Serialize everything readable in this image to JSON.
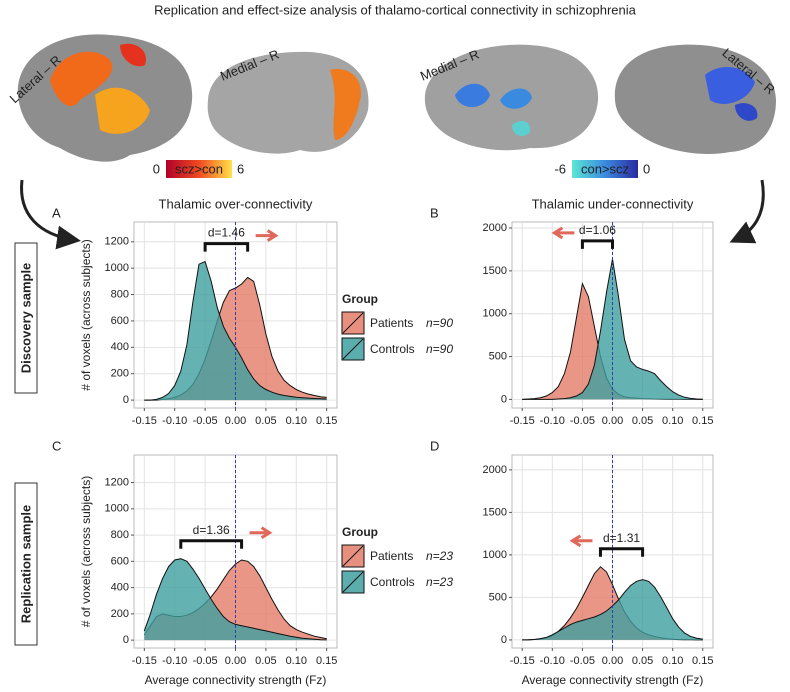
{
  "title": "Replication and effect-size analysis of thalamo-cortical connectivity in schizophrenia",
  "brain_labels": [
    "Lateral – R",
    "Medial – R",
    "Medial – R",
    "Lateral – R"
  ],
  "colorbars": [
    {
      "min": 0,
      "label": "scz>con",
      "max": 6
    },
    {
      "min": -6,
      "label": "con>scz",
      "max": 0
    }
  ],
  "row_labels": [
    "Discovery sample",
    "Replication sample"
  ],
  "chart_data": [
    {
      "type": "density",
      "panel": "A",
      "title": "Thalamic over-connectivity",
      "ylabel": "# of voxels (across subjects)",
      "x": [
        -0.15,
        -0.14,
        -0.13,
        -0.12,
        -0.11,
        -0.1,
        -0.09,
        -0.08,
        -0.07,
        -0.06,
        -0.05,
        -0.04,
        -0.03,
        -0.02,
        -0.01,
        0,
        0.01,
        0.02,
        0.03,
        0.04,
        0.05,
        0.06,
        0.07,
        0.08,
        0.09,
        0.1,
        0.11,
        0.12,
        0.13,
        0.14,
        0.15
      ],
      "series": [
        {
          "name": "Patients",
          "n_label": "n=90",
          "color": "#e47c68",
          "values": [
            0,
            0,
            0,
            5,
            10,
            20,
            40,
            70,
            120,
            200,
            310,
            450,
            600,
            740,
            830,
            850,
            880,
            930,
            900,
            720,
            500,
            330,
            220,
            150,
            110,
            80,
            60,
            45,
            35,
            25,
            20
          ]
        },
        {
          "name": "Controls",
          "n_label": "n=90",
          "color": "#3f9f9f",
          "values": [
            0,
            0,
            5,
            20,
            50,
            110,
            220,
            420,
            750,
            1030,
            1050,
            900,
            700,
            560,
            470,
            400,
            320,
            230,
            160,
            110,
            80,
            60,
            45,
            35,
            28,
            22,
            18,
            15,
            12,
            10,
            8
          ]
        }
      ],
      "legend_title": "Group",
      "effect_label": "d=1.46",
      "arrow": "right",
      "vline": 0,
      "xlim": [
        -0.167,
        0.167
      ],
      "ylim": [
        -60,
        1350
      ],
      "xticks": [
        -0.15,
        {
          "value": -0.1,
          "label": "-0.10"
        },
        -0.05,
        {
          "value": 0,
          "label": "0.00"
        },
        0.05,
        {
          "value": 0.1,
          "label": "0.10"
        },
        0.15
      ],
      "yticks": [
        0,
        200,
        400,
        600,
        800,
        1000,
        1200
      ],
      "grid": true
    },
    {
      "type": "density",
      "panel": "B",
      "title": "Thalamic under-connectivity",
      "x": [
        -0.15,
        -0.14,
        -0.13,
        -0.12,
        -0.11,
        -0.1,
        -0.09,
        -0.08,
        -0.07,
        -0.06,
        -0.05,
        -0.04,
        -0.03,
        -0.02,
        -0.01,
        0,
        0.01,
        0.02,
        0.03,
        0.04,
        0.05,
        0.06,
        0.07,
        0.08,
        0.09,
        0.1,
        0.11,
        0.12,
        0.13,
        0.14,
        0.15
      ],
      "series": [
        {
          "color": "#e47c68",
          "values": [
            0,
            5,
            10,
            20,
            40,
            80,
            150,
            300,
            550,
            950,
            1350,
            1200,
            850,
            500,
            250,
            120,
            60,
            30,
            20,
            15,
            10,
            8,
            5,
            4,
            3,
            2,
            1,
            0,
            0,
            0,
            0
          ]
        },
        {
          "color": "#3f9f9f",
          "values": [
            0,
            0,
            0,
            0,
            0,
            0,
            5,
            10,
            20,
            40,
            80,
            180,
            400,
            800,
            1250,
            1640,
            1200,
            700,
            450,
            380,
            350,
            330,
            300,
            220,
            150,
            90,
            50,
            25,
            12,
            5,
            2
          ]
        }
      ],
      "effect_label": "d=1.06",
      "arrow": "left",
      "vline": 0,
      "xlim": [
        -0.167,
        0.167
      ],
      "ylim": [
        -100,
        2070
      ],
      "xticks": [
        -0.15,
        {
          "value": -0.1,
          "label": "-0.10"
        },
        -0.05,
        {
          "value": 0,
          "label": "0.00"
        },
        0.05,
        {
          "value": 0.1,
          "label": "0.10"
        },
        0.15
      ],
      "yticks": [
        0,
        500,
        1000,
        1500,
        2000
      ],
      "grid": true
    },
    {
      "type": "density",
      "panel": "C",
      "ylabel": "# of voxels (across subjects)",
      "xlabel": "Average connectivity strength (Fz)",
      "x": [
        -0.15,
        -0.14,
        -0.13,
        -0.12,
        -0.11,
        -0.1,
        -0.09,
        -0.08,
        -0.07,
        -0.06,
        -0.05,
        -0.04,
        -0.03,
        -0.02,
        -0.01,
        0,
        0.01,
        0.02,
        0.03,
        0.04,
        0.05,
        0.06,
        0.07,
        0.08,
        0.09,
        0.1,
        0.11,
        0.12,
        0.13,
        0.14,
        0.15
      ],
      "series": [
        {
          "name": "Patients",
          "n_label": "n=23",
          "color": "#e47c68",
          "values": [
            40,
            110,
            180,
            200,
            190,
            180,
            180,
            190,
            210,
            240,
            280,
            330,
            390,
            460,
            530,
            580,
            610,
            600,
            560,
            490,
            400,
            310,
            230,
            160,
            110,
            80,
            60,
            45,
            30,
            20,
            10
          ]
        },
        {
          "name": "Controls",
          "n_label": "n=23",
          "color": "#3f9f9f",
          "values": [
            70,
            200,
            350,
            470,
            560,
            610,
            620,
            600,
            540,
            470,
            390,
            310,
            240,
            180,
            140,
            120,
            110,
            100,
            90,
            80,
            70,
            60,
            50,
            40,
            30,
            22,
            15,
            10,
            6,
            3,
            2
          ]
        }
      ],
      "legend_title": "Group",
      "effect_label": "d=1.36",
      "arrow": "right",
      "vline": 0,
      "xlim": [
        -0.167,
        0.167
      ],
      "ylim": [
        -60,
        1410
      ],
      "xticks": [
        -0.15,
        {
          "value": -0.1,
          "label": "-0.10"
        },
        -0.05,
        {
          "value": 0,
          "label": "0.00"
        },
        0.05,
        {
          "value": 0.1,
          "label": "0.10"
        },
        0.15
      ],
      "yticks": [
        0,
        200,
        400,
        600,
        800,
        1000,
        1200
      ],
      "grid": true
    },
    {
      "type": "density",
      "panel": "D",
      "xlabel": "Average connectivity strength (Fz)",
      "x": [
        -0.15,
        -0.14,
        -0.13,
        -0.12,
        -0.11,
        -0.1,
        -0.09,
        -0.08,
        -0.07,
        -0.06,
        -0.05,
        -0.04,
        -0.03,
        -0.02,
        -0.01,
        0,
        0.01,
        0.02,
        0.03,
        0.04,
        0.05,
        0.06,
        0.07,
        0.08,
        0.09,
        0.1,
        0.11,
        0.12,
        0.13,
        0.14,
        0.15
      ],
      "series": [
        {
          "color": "#e47c68",
          "values": [
            0,
            2,
            5,
            10,
            25,
            50,
            100,
            170,
            260,
            370,
            500,
            640,
            780,
            860,
            800,
            650,
            480,
            330,
            220,
            140,
            90,
            60,
            40,
            25,
            15,
            8,
            4,
            2,
            1,
            0,
            0
          ]
        },
        {
          "color": "#3f9f9f",
          "values": [
            0,
            0,
            5,
            15,
            30,
            60,
            100,
            140,
            180,
            210,
            230,
            250,
            270,
            300,
            340,
            400,
            470,
            560,
            640,
            690,
            710,
            690,
            620,
            510,
            380,
            250,
            150,
            80,
            40,
            20,
            10
          ]
        }
      ],
      "effect_label": "d=1.31",
      "arrow": "left",
      "vline": 0,
      "xlim": [
        -0.167,
        0.167
      ],
      "ylim": [
        -95,
        2175
      ],
      "xticks": [
        -0.15,
        {
          "value": -0.1,
          "label": "-0.10"
        },
        -0.05,
        {
          "value": 0,
          "label": "0.00"
        },
        0.05,
        {
          "value": 0.1,
          "label": "0.10"
        },
        0.15
      ],
      "yticks": [
        0,
        500,
        1000,
        1500,
        2000
      ],
      "grid": true
    }
  ]
}
